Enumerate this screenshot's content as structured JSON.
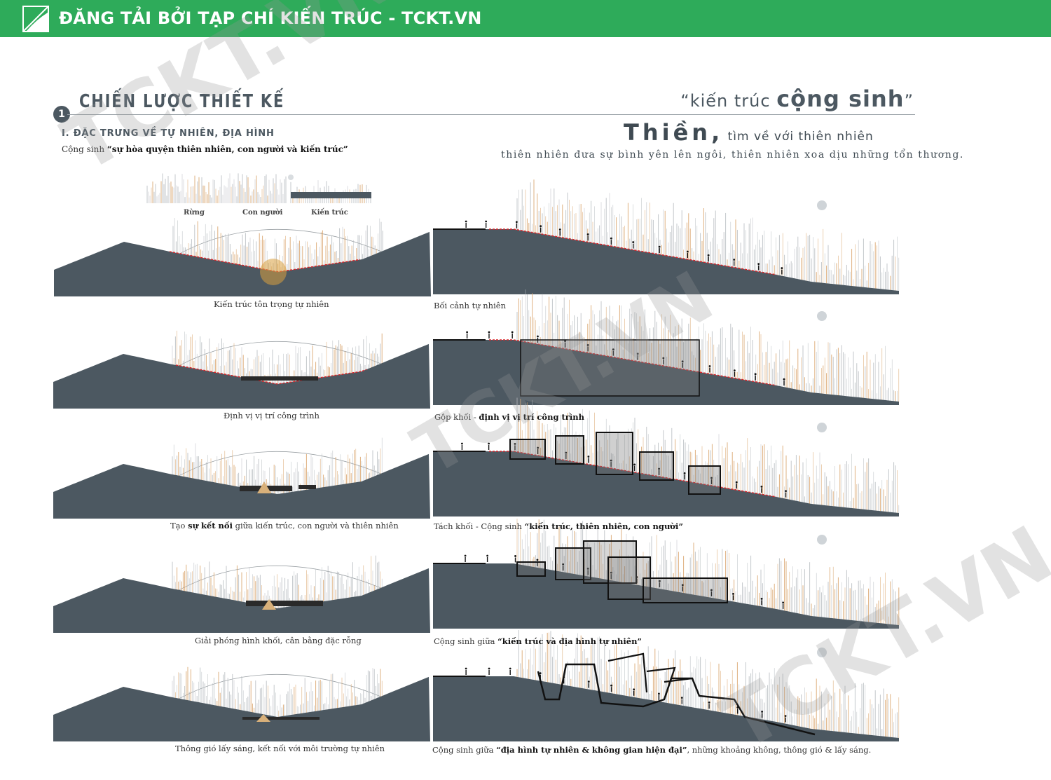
{
  "banner": {
    "text": "ĐĂNG TẢI BỞI TẠP CHÍ KIẾN TRÚC - TCKT.VN",
    "color": "#2eab5a"
  },
  "section": {
    "number": "1",
    "title": "CHIẾN LƯỢC THIẾT KẾ",
    "quote_light": "“kiến trúc ",
    "quote_bold": "cộng sinh",
    "quote_close": "”"
  },
  "left_heading": {
    "title": "I. ĐẶC TRƯNG VỀ TỰ NHIÊN, ĐỊA HÌNH",
    "desc_prefix": "Cộng sinh ",
    "desc_bold": "“sự hòa quyện thiên nhiên, con người và kiến trúc”"
  },
  "legend": {
    "forest": "Rừng",
    "people": "Con người",
    "architecture": "Kiến trúc"
  },
  "right_heading": {
    "title_bold": "Thiền,",
    "title_light": " tìm về với thiên nhiên",
    "subtitle": "thiên nhiên đưa sự bình yên lên ngôi, thiên nhiên xoa dịu những tổn thương."
  },
  "left_captions": [
    {
      "pre": "Kiến trúc tôn trọng tự nhiên",
      "bold": "",
      "post": ""
    },
    {
      "pre": "Định vị vị trí công trình",
      "bold": "",
      "post": ""
    },
    {
      "pre": "Tạo ",
      "bold": "sự kết nối",
      "post": " giữa kiến trúc, con người và thiên nhiên"
    },
    {
      "pre": "Giải phóng hình khối, cân bằng đặc rỗng",
      "bold": "",
      "post": ""
    },
    {
      "pre": "Thông gió lấy sáng, kết nối với môi trường tự nhiên",
      "bold": "",
      "post": ""
    }
  ],
  "right_captions": [
    {
      "pre": "Bối cảnh tự nhiên",
      "bold": "",
      "post": ""
    },
    {
      "pre": "Gộp khối - ",
      "bold": "định vị vị trí công trình",
      "post": ""
    },
    {
      "pre": "Tách khối - Cộng sinh ",
      "bold": "“kiến trúc, thiên nhiên, con người”",
      "post": ""
    },
    {
      "pre": "Cộng sinh giữa ",
      "bold": "“kiến trúc và địa hình tự nhiên”",
      "post": ""
    },
    {
      "pre": "Cộng sinh giữa ",
      "bold": "“địa hình tự nhiên & không gian hiện đại”",
      "post": ", những khoảng không, thông gió & lấy sáng."
    }
  ],
  "watermark": "TCKT.VN",
  "colors": {
    "terrain": "#4c5861",
    "heading": "#4c5861",
    "red_line": "#d8262b",
    "tree_warm": "#d9a36a"
  }
}
